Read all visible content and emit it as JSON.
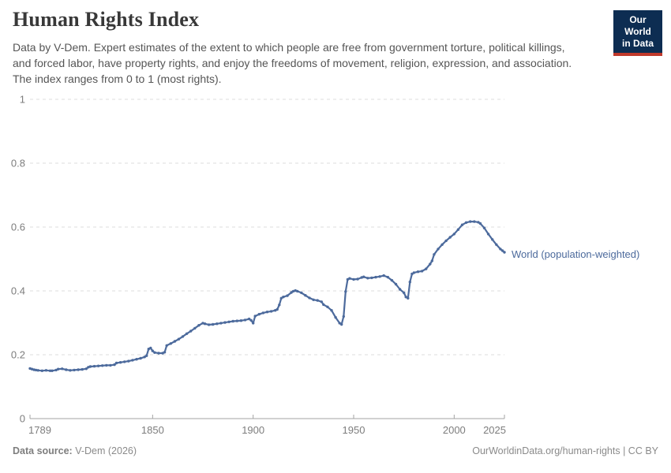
{
  "header": {
    "title": "Human Rights Index",
    "subtitle": "Data by V-Dem. Expert estimates of the extent to which people are free from government torture, political killings, and forced labor, have property rights, and enjoy the freedoms of movement, religion, expression, and association. The index ranges from 0 to 1 (most rights).",
    "logo": {
      "line1": "Our World",
      "line2": "in Data",
      "bg_color": "#0d2d52",
      "accent_color": "#c0392b"
    }
  },
  "chart_data": {
    "type": "line",
    "title": "Human Rights Index",
    "xlabel": "",
    "ylabel": "",
    "xlim": [
      1789,
      2025
    ],
    "ylim": [
      0,
      1
    ],
    "xticks": [
      1789,
      1850,
      1900,
      1950,
      2000,
      2025
    ],
    "yticks": [
      0,
      0.2,
      0.4,
      0.6,
      0.8,
      1
    ],
    "ytick_labels": [
      "0",
      "0.2",
      "0.4",
      "0.6",
      "0.8",
      "1"
    ],
    "grid": "horizontal-dashed",
    "legend_position": "right-of-line-end",
    "series": [
      {
        "name": "World (population-weighted)",
        "color": "#4c6a9c",
        "points": [
          [
            1789,
            0.157
          ],
          [
            1790,
            0.155
          ],
          [
            1791,
            0.153
          ],
          [
            1792,
            0.152
          ],
          [
            1793,
            0.151
          ],
          [
            1795,
            0.15
          ],
          [
            1797,
            0.151
          ],
          [
            1799,
            0.15
          ],
          [
            1800,
            0.15
          ],
          [
            1802,
            0.152
          ],
          [
            1803,
            0.155
          ],
          [
            1805,
            0.156
          ],
          [
            1807,
            0.153
          ],
          [
            1809,
            0.151
          ],
          [
            1811,
            0.152
          ],
          [
            1813,
            0.153
          ],
          [
            1815,
            0.154
          ],
          [
            1817,
            0.156
          ],
          [
            1818,
            0.161
          ],
          [
            1819,
            0.163
          ],
          [
            1821,
            0.164
          ],
          [
            1823,
            0.165
          ],
          [
            1825,
            0.166
          ],
          [
            1827,
            0.167
          ],
          [
            1829,
            0.167
          ],
          [
            1831,
            0.169
          ],
          [
            1832,
            0.174
          ],
          [
            1834,
            0.176
          ],
          [
            1836,
            0.178
          ],
          [
            1838,
            0.18
          ],
          [
            1840,
            0.183
          ],
          [
            1842,
            0.186
          ],
          [
            1844,
            0.189
          ],
          [
            1846,
            0.193
          ],
          [
            1847,
            0.197
          ],
          [
            1848,
            0.218
          ],
          [
            1849,
            0.221
          ],
          [
            1850,
            0.212
          ],
          [
            1851,
            0.207
          ],
          [
            1853,
            0.205
          ],
          [
            1855,
            0.205
          ],
          [
            1856,
            0.208
          ],
          [
            1857,
            0.229
          ],
          [
            1859,
            0.235
          ],
          [
            1861,
            0.242
          ],
          [
            1863,
            0.249
          ],
          [
            1865,
            0.257
          ],
          [
            1867,
            0.266
          ],
          [
            1869,
            0.274
          ],
          [
            1871,
            0.283
          ],
          [
            1873,
            0.292
          ],
          [
            1875,
            0.299
          ],
          [
            1876,
            0.297
          ],
          [
            1878,
            0.294
          ],
          [
            1880,
            0.295
          ],
          [
            1882,
            0.297
          ],
          [
            1884,
            0.299
          ],
          [
            1886,
            0.301
          ],
          [
            1888,
            0.303
          ],
          [
            1890,
            0.305
          ],
          [
            1892,
            0.306
          ],
          [
            1894,
            0.307
          ],
          [
            1896,
            0.309
          ],
          [
            1898,
            0.312
          ],
          [
            1899,
            0.308
          ],
          [
            1900,
            0.299
          ],
          [
            1901,
            0.321
          ],
          [
            1903,
            0.327
          ],
          [
            1905,
            0.331
          ],
          [
            1907,
            0.334
          ],
          [
            1909,
            0.336
          ],
          [
            1911,
            0.339
          ],
          [
            1912,
            0.342
          ],
          [
            1913,
            0.356
          ],
          [
            1914,
            0.377
          ],
          [
            1915,
            0.381
          ],
          [
            1917,
            0.385
          ],
          [
            1919,
            0.395
          ],
          [
            1920,
            0.399
          ],
          [
            1921,
            0.401
          ],
          [
            1922,
            0.399
          ],
          [
            1924,
            0.394
          ],
          [
            1926,
            0.386
          ],
          [
            1928,
            0.378
          ],
          [
            1930,
            0.372
          ],
          [
            1932,
            0.37
          ],
          [
            1934,
            0.366
          ],
          [
            1935,
            0.357
          ],
          [
            1937,
            0.35
          ],
          [
            1939,
            0.339
          ],
          [
            1941,
            0.317
          ],
          [
            1943,
            0.299
          ],
          [
            1944,
            0.295
          ],
          [
            1945,
            0.32
          ],
          [
            1946,
            0.398
          ],
          [
            1947,
            0.436
          ],
          [
            1948,
            0.439
          ],
          [
            1950,
            0.436
          ],
          [
            1952,
            0.437
          ],
          [
            1954,
            0.442
          ],
          [
            1955,
            0.444
          ],
          [
            1957,
            0.44
          ],
          [
            1959,
            0.441
          ],
          [
            1961,
            0.443
          ],
          [
            1963,
            0.445
          ],
          [
            1965,
            0.448
          ],
          [
            1967,
            0.443
          ],
          [
            1969,
            0.433
          ],
          [
            1971,
            0.421
          ],
          [
            1973,
            0.405
          ],
          [
            1975,
            0.394
          ],
          [
            1976,
            0.381
          ],
          [
            1977,
            0.377
          ],
          [
            1978,
            0.428
          ],
          [
            1979,
            0.453
          ],
          [
            1980,
            0.457
          ],
          [
            1982,
            0.46
          ],
          [
            1984,
            0.462
          ],
          [
            1986,
            0.469
          ],
          [
            1988,
            0.484
          ],
          [
            1989,
            0.494
          ],
          [
            1990,
            0.514
          ],
          [
            1992,
            0.531
          ],
          [
            1994,
            0.545
          ],
          [
            1996,
            0.557
          ],
          [
            1998,
            0.568
          ],
          [
            2000,
            0.578
          ],
          [
            2002,
            0.592
          ],
          [
            2004,
            0.607
          ],
          [
            2006,
            0.614
          ],
          [
            2008,
            0.617
          ],
          [
            2010,
            0.617
          ],
          [
            2012,
            0.615
          ],
          [
            2013,
            0.611
          ],
          [
            2015,
            0.597
          ],
          [
            2017,
            0.578
          ],
          [
            2019,
            0.561
          ],
          [
            2021,
            0.545
          ],
          [
            2023,
            0.531
          ],
          [
            2024,
            0.526
          ],
          [
            2025,
            0.521
          ]
        ]
      }
    ]
  },
  "footer": {
    "source_label": "Data source:",
    "source_value": " V-Dem (2026)",
    "credit": "OurWorldinData.org/human-rights | CC BY"
  },
  "colors": {
    "line": "#4c6a9c",
    "gridline": "#dcdcdc",
    "axis": "#a3a3a3",
    "tick_text": "#7d7d7d"
  }
}
